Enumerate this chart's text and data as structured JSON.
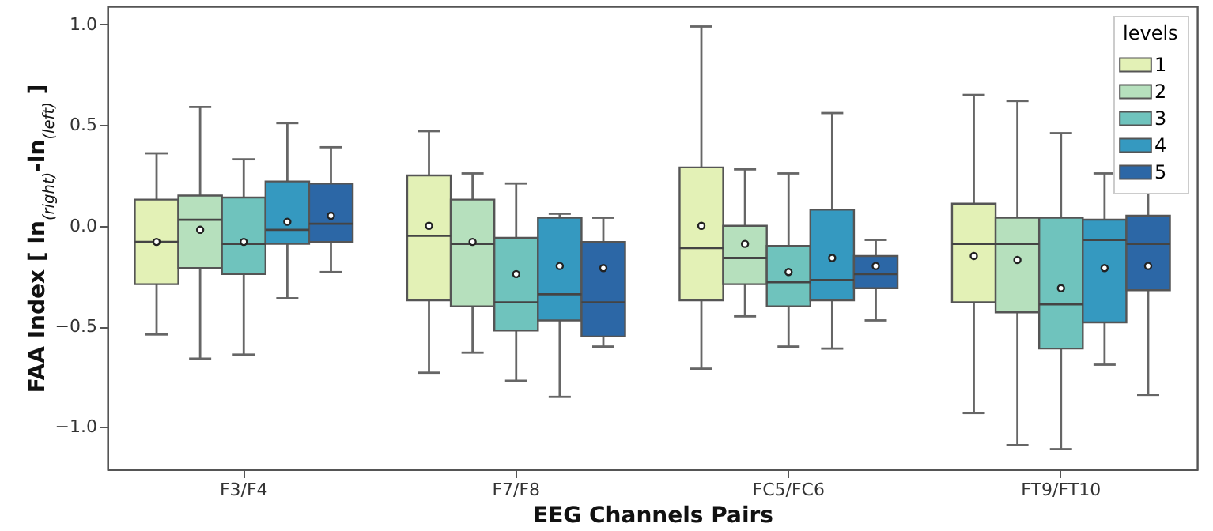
{
  "chart_data": {
    "type": "box",
    "xlabel": "EEG Channels Pairs",
    "ylabel": "FAA Index [ ln$_{(right)}$-ln$_{(left)}$ ]",
    "legend_title": "levels",
    "legend": "top right",
    "categories": [
      "F3/F4",
      "F7/F8",
      "FC5/FC6",
      "FT9/FT10"
    ],
    "ylim": [
      -1.21,
      1.09
    ],
    "yticks": [
      {
        "value": -1,
        "label": "−1.0"
      },
      {
        "value": -0.5,
        "label": "−0.5"
      },
      {
        "value": 0,
        "label": "0.0"
      },
      {
        "value": 0.5,
        "label": "0.5"
      },
      {
        "value": 1,
        "label": "1.0"
      }
    ],
    "series": [
      {
        "name": "1",
        "color": "#e3f1b6",
        "boxes": [
          {
            "low": -0.54,
            "q1": -0.29,
            "median": -0.08,
            "q3": 0.13,
            "high": 0.36,
            "mean": -0.08
          },
          {
            "low": -0.73,
            "q1": -0.37,
            "median": -0.05,
            "q3": 0.25,
            "high": 0.47,
            "mean": 0.0
          },
          {
            "low": -0.71,
            "q1": -0.37,
            "median": -0.11,
            "q3": 0.29,
            "high": 0.99,
            "mean": 0.0
          },
          {
            "low": -0.93,
            "q1": -0.38,
            "median": -0.09,
            "q3": 0.11,
            "high": 0.65,
            "mean": -0.15
          }
        ]
      },
      {
        "name": "2",
        "color": "#b6e0bd",
        "boxes": [
          {
            "low": -0.66,
            "q1": -0.21,
            "median": 0.03,
            "q3": 0.15,
            "high": 0.59,
            "mean": -0.02
          },
          {
            "low": -0.63,
            "q1": -0.4,
            "median": -0.09,
            "q3": 0.13,
            "high": 0.26,
            "mean": -0.08
          },
          {
            "low": -0.45,
            "q1": -0.29,
            "median": -0.16,
            "q3": 0.0,
            "high": 0.28,
            "mean": -0.09
          },
          {
            "low": -1.09,
            "q1": -0.43,
            "median": -0.09,
            "q3": 0.04,
            "high": 0.62,
            "mean": -0.17
          }
        ]
      },
      {
        "name": "3",
        "color": "#6fc3bd",
        "boxes": [
          {
            "low": -0.64,
            "q1": -0.24,
            "median": -0.09,
            "q3": 0.14,
            "high": 0.33,
            "mean": -0.08
          },
          {
            "low": -0.77,
            "q1": -0.52,
            "median": -0.38,
            "q3": -0.06,
            "high": 0.21,
            "mean": -0.24
          },
          {
            "low": -0.6,
            "q1": -0.4,
            "median": -0.28,
            "q3": -0.1,
            "high": 0.26,
            "mean": -0.23
          },
          {
            "low": -1.11,
            "q1": -0.61,
            "median": -0.39,
            "q3": 0.04,
            "high": 0.46,
            "mean": -0.31
          }
        ]
      },
      {
        "name": "4",
        "color": "#3599c0",
        "boxes": [
          {
            "low": -0.36,
            "q1": -0.09,
            "median": -0.02,
            "q3": 0.22,
            "high": 0.51,
            "mean": 0.02
          },
          {
            "low": -0.85,
            "q1": -0.47,
            "median": -0.34,
            "q3": 0.04,
            "high": 0.06,
            "mean": -0.2
          },
          {
            "low": -0.61,
            "q1": -0.37,
            "median": -0.27,
            "q3": 0.08,
            "high": 0.56,
            "mean": -0.16
          },
          {
            "low": -0.69,
            "q1": -0.48,
            "median": -0.07,
            "q3": 0.03,
            "high": 0.26,
            "mean": -0.21
          }
        ]
      },
      {
        "name": "5",
        "color": "#2c67a6",
        "boxes": [
          {
            "low": -0.23,
            "q1": -0.08,
            "median": 0.01,
            "q3": 0.21,
            "high": 0.39,
            "mean": 0.05
          },
          {
            "low": -0.6,
            "q1": -0.55,
            "median": -0.38,
            "q3": -0.08,
            "high": 0.04,
            "mean": -0.21
          },
          {
            "low": -0.47,
            "q1": -0.31,
            "median": -0.24,
            "q3": -0.15,
            "high": -0.07,
            "mean": -0.2
          },
          {
            "low": -0.84,
            "q1": -0.32,
            "median": -0.09,
            "q3": 0.05,
            "high": 0.17,
            "mean": -0.2
          }
        ]
      }
    ]
  }
}
